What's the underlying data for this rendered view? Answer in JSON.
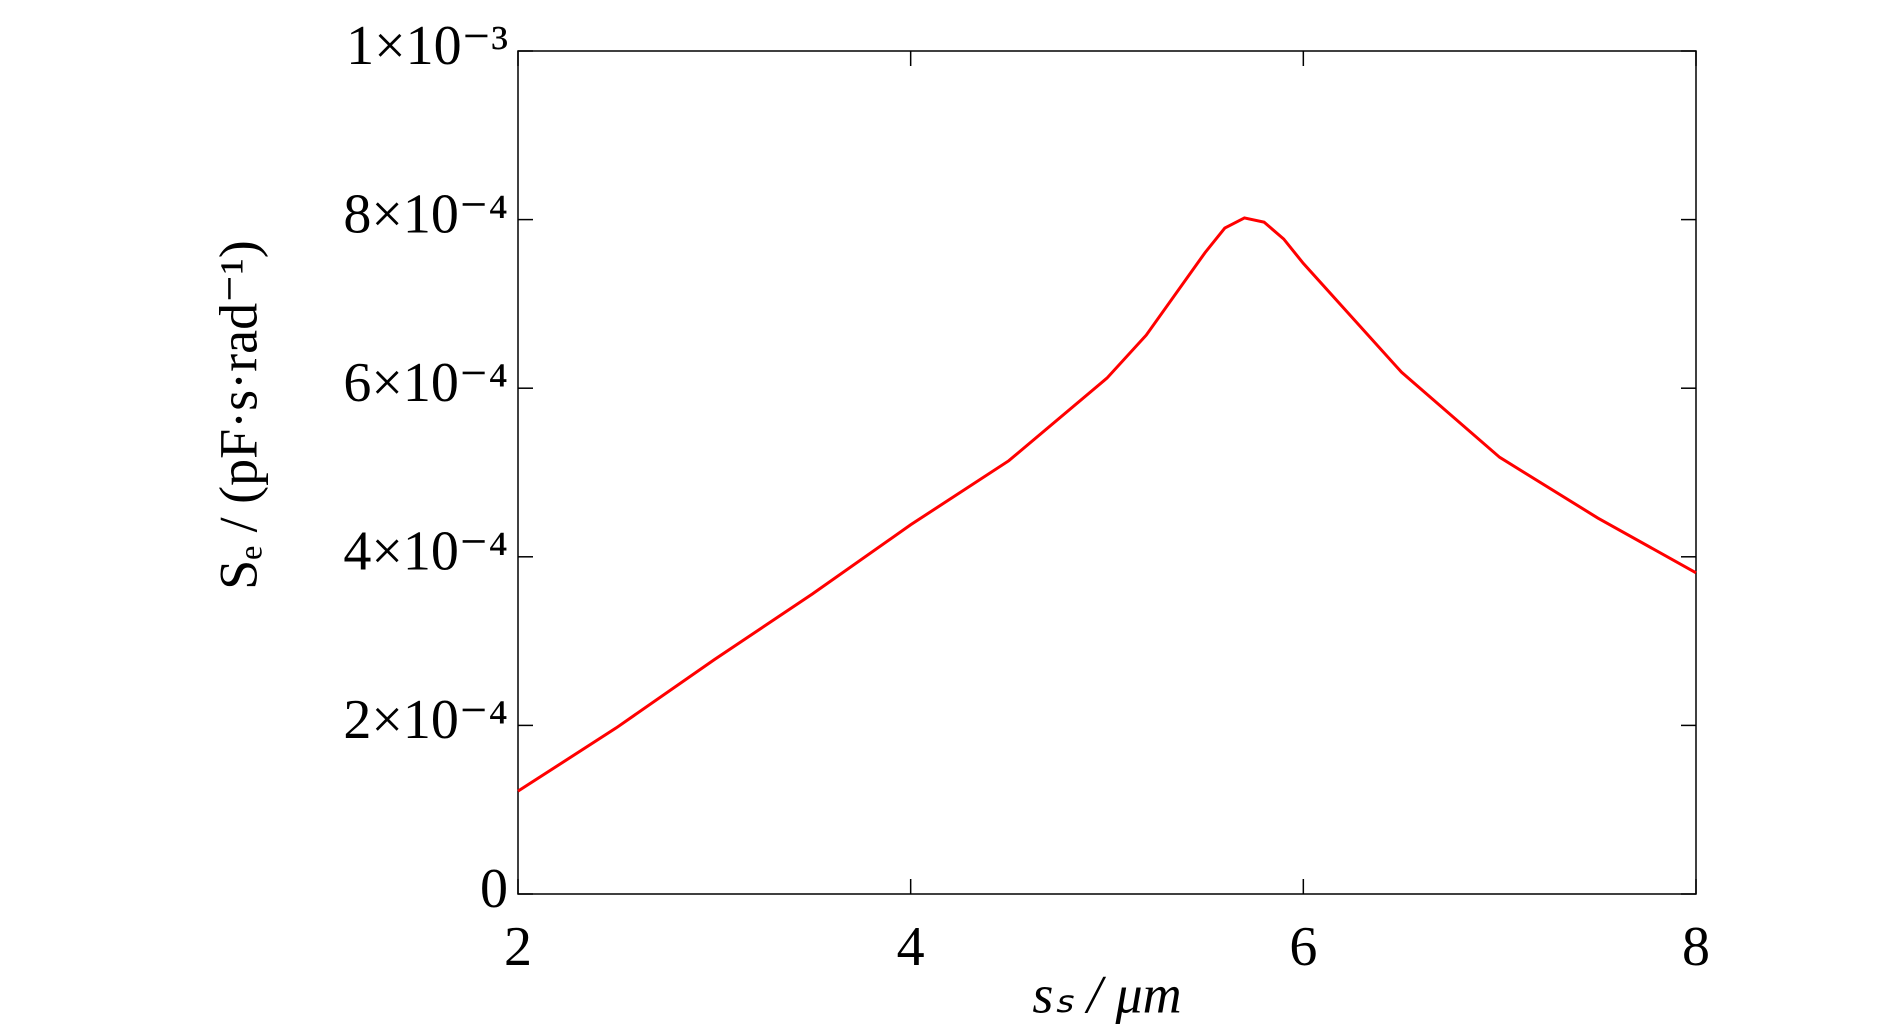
{
  "chart_data": {
    "type": "line",
    "x_label": "sₛ / μm",
    "y_label": "Sₑ / (pF·s·rad⁻¹)",
    "xlim": [
      2,
      8
    ],
    "xticks": [
      2,
      4,
      6,
      8
    ],
    "ylim": [
      0,
      0.001
    ],
    "yticks": [
      0,
      {
        "value": 0.0002,
        "label": "2×10⁻⁴"
      },
      {
        "value": 0.0004,
        "label": "4×10⁻⁴"
      },
      {
        "value": 0.0006,
        "label": "6×10⁻⁴"
      },
      {
        "value": 0.0008,
        "label": "8×10⁻⁴"
      },
      {
        "value": 0.001,
        "label": "1×10⁻³"
      }
    ],
    "grid": false,
    "series": [
      {
        "color": "#ff0000",
        "x": [
          2,
          2.5,
          3,
          3.5,
          4,
          4.5,
          5,
          5.2,
          5.5,
          5.6,
          5.7,
          5.8,
          5.9,
          6,
          6.5,
          7,
          7.5,
          8
        ],
        "values": [
          0.000122,
          0.000197,
          0.000278,
          0.000356,
          0.000438,
          0.000514,
          0.000612,
          0.000663,
          0.000761,
          0.00079,
          0.000802,
          0.000797,
          0.000777,
          0.000748,
          0.000619,
          0.000518,
          0.000446,
          0.000381
        ]
      }
    ]
  }
}
